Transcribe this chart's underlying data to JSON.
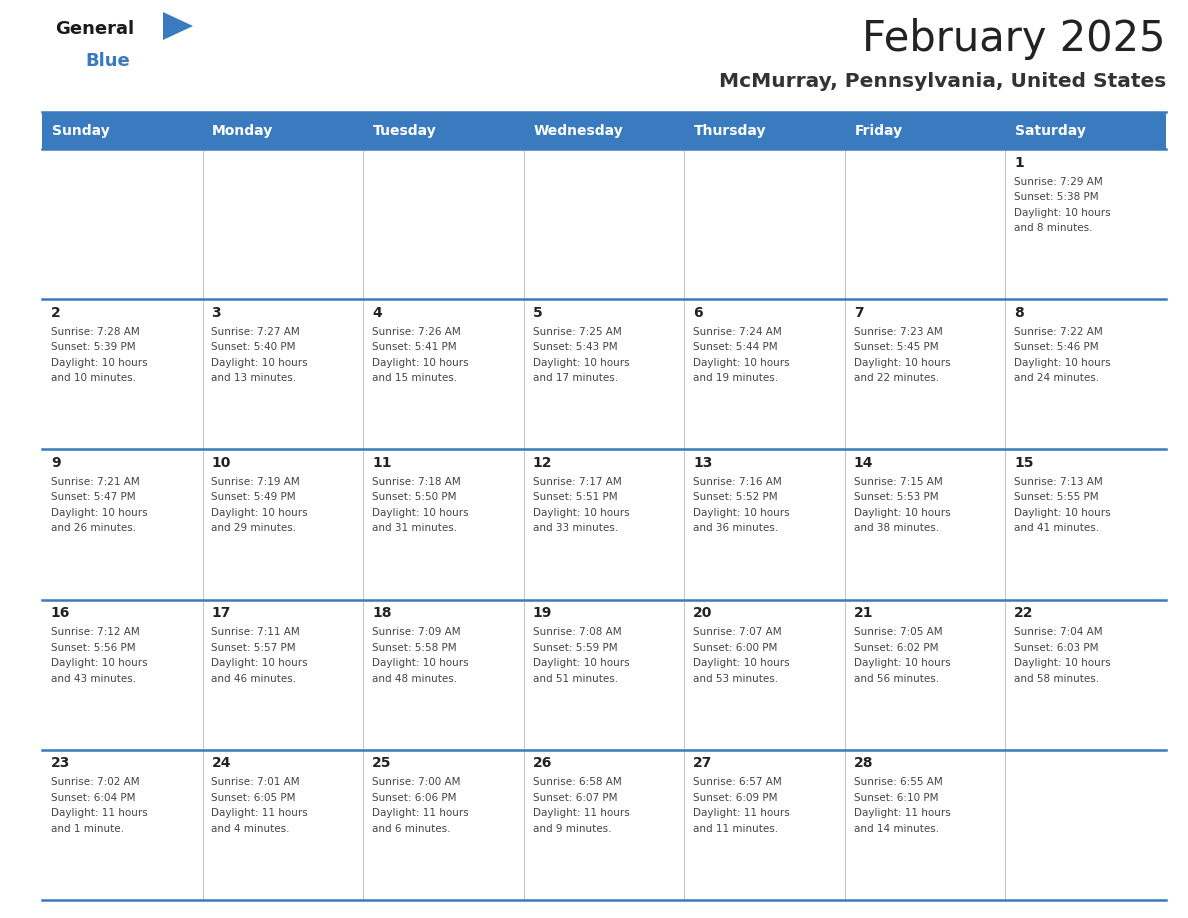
{
  "title": "February 2025",
  "subtitle": "McMurray, Pennsylvania, United States",
  "header_color": "#3a7bbf",
  "header_text_color": "#ffffff",
  "cell_bg_color": "#ffffff",
  "border_color": "#3a7bbf",
  "thin_border_color": "#aaaaaa",
  "title_color": "#222222",
  "subtitle_color": "#333333",
  "day_number_color": "#222222",
  "cell_text_color": "#444444",
  "days_of_week": [
    "Sunday",
    "Monday",
    "Tuesday",
    "Wednesday",
    "Thursday",
    "Friday",
    "Saturday"
  ],
  "weeks": [
    [
      {
        "day": null,
        "sunrise": null,
        "sunset": null,
        "daylight": null
      },
      {
        "day": null,
        "sunrise": null,
        "sunset": null,
        "daylight": null
      },
      {
        "day": null,
        "sunrise": null,
        "sunset": null,
        "daylight": null
      },
      {
        "day": null,
        "sunrise": null,
        "sunset": null,
        "daylight": null
      },
      {
        "day": null,
        "sunrise": null,
        "sunset": null,
        "daylight": null
      },
      {
        "day": null,
        "sunrise": null,
        "sunset": null,
        "daylight": null
      },
      {
        "day": 1,
        "sunrise": "7:29 AM",
        "sunset": "5:38 PM",
        "daylight": "10 hours\nand 8 minutes."
      }
    ],
    [
      {
        "day": 2,
        "sunrise": "7:28 AM",
        "sunset": "5:39 PM",
        "daylight": "10 hours\nand 10 minutes."
      },
      {
        "day": 3,
        "sunrise": "7:27 AM",
        "sunset": "5:40 PM",
        "daylight": "10 hours\nand 13 minutes."
      },
      {
        "day": 4,
        "sunrise": "7:26 AM",
        "sunset": "5:41 PM",
        "daylight": "10 hours\nand 15 minutes."
      },
      {
        "day": 5,
        "sunrise": "7:25 AM",
        "sunset": "5:43 PM",
        "daylight": "10 hours\nand 17 minutes."
      },
      {
        "day": 6,
        "sunrise": "7:24 AM",
        "sunset": "5:44 PM",
        "daylight": "10 hours\nand 19 minutes."
      },
      {
        "day": 7,
        "sunrise": "7:23 AM",
        "sunset": "5:45 PM",
        "daylight": "10 hours\nand 22 minutes."
      },
      {
        "day": 8,
        "sunrise": "7:22 AM",
        "sunset": "5:46 PM",
        "daylight": "10 hours\nand 24 minutes."
      }
    ],
    [
      {
        "day": 9,
        "sunrise": "7:21 AM",
        "sunset": "5:47 PM",
        "daylight": "10 hours\nand 26 minutes."
      },
      {
        "day": 10,
        "sunrise": "7:19 AM",
        "sunset": "5:49 PM",
        "daylight": "10 hours\nand 29 minutes."
      },
      {
        "day": 11,
        "sunrise": "7:18 AM",
        "sunset": "5:50 PM",
        "daylight": "10 hours\nand 31 minutes."
      },
      {
        "day": 12,
        "sunrise": "7:17 AM",
        "sunset": "5:51 PM",
        "daylight": "10 hours\nand 33 minutes."
      },
      {
        "day": 13,
        "sunrise": "7:16 AM",
        "sunset": "5:52 PM",
        "daylight": "10 hours\nand 36 minutes."
      },
      {
        "day": 14,
        "sunrise": "7:15 AM",
        "sunset": "5:53 PM",
        "daylight": "10 hours\nand 38 minutes."
      },
      {
        "day": 15,
        "sunrise": "7:13 AM",
        "sunset": "5:55 PM",
        "daylight": "10 hours\nand 41 minutes."
      }
    ],
    [
      {
        "day": 16,
        "sunrise": "7:12 AM",
        "sunset": "5:56 PM",
        "daylight": "10 hours\nand 43 minutes."
      },
      {
        "day": 17,
        "sunrise": "7:11 AM",
        "sunset": "5:57 PM",
        "daylight": "10 hours\nand 46 minutes."
      },
      {
        "day": 18,
        "sunrise": "7:09 AM",
        "sunset": "5:58 PM",
        "daylight": "10 hours\nand 48 minutes."
      },
      {
        "day": 19,
        "sunrise": "7:08 AM",
        "sunset": "5:59 PM",
        "daylight": "10 hours\nand 51 minutes."
      },
      {
        "day": 20,
        "sunrise": "7:07 AM",
        "sunset": "6:00 PM",
        "daylight": "10 hours\nand 53 minutes."
      },
      {
        "day": 21,
        "sunrise": "7:05 AM",
        "sunset": "6:02 PM",
        "daylight": "10 hours\nand 56 minutes."
      },
      {
        "day": 22,
        "sunrise": "7:04 AM",
        "sunset": "6:03 PM",
        "daylight": "10 hours\nand 58 minutes."
      }
    ],
    [
      {
        "day": 23,
        "sunrise": "7:02 AM",
        "sunset": "6:04 PM",
        "daylight": "11 hours\nand 1 minute."
      },
      {
        "day": 24,
        "sunrise": "7:01 AM",
        "sunset": "6:05 PM",
        "daylight": "11 hours\nand 4 minutes."
      },
      {
        "day": 25,
        "sunrise": "7:00 AM",
        "sunset": "6:06 PM",
        "daylight": "11 hours\nand 6 minutes."
      },
      {
        "day": 26,
        "sunrise": "6:58 AM",
        "sunset": "6:07 PM",
        "daylight": "11 hours\nand 9 minutes."
      },
      {
        "day": 27,
        "sunrise": "6:57 AM",
        "sunset": "6:09 PM",
        "daylight": "11 hours\nand 11 minutes."
      },
      {
        "day": 28,
        "sunrise": "6:55 AM",
        "sunset": "6:10 PM",
        "daylight": "11 hours\nand 14 minutes."
      },
      {
        "day": null,
        "sunrise": null,
        "sunset": null,
        "daylight": null
      }
    ]
  ]
}
